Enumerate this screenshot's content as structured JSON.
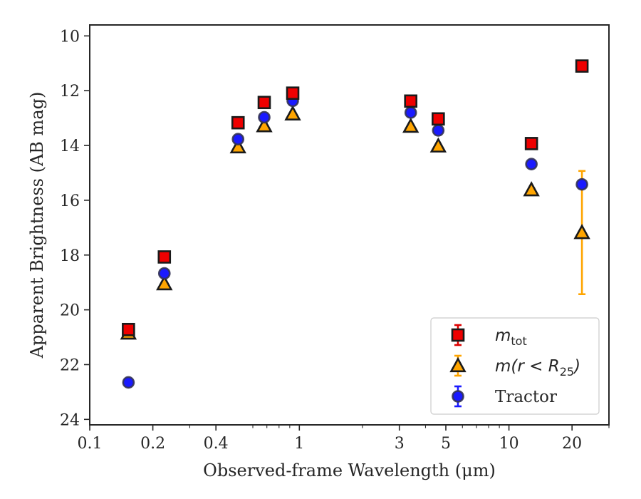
{
  "chart_data": {
    "type": "scatter",
    "title": "",
    "xlabel": "Observed-frame Wavelength (μm)",
    "ylabel": "Apparent Brightness (AB mag)",
    "xscale": "log",
    "xlim": [
      0.1,
      30
    ],
    "ylim": [
      24.2,
      9.6
    ],
    "y_inverted": true,
    "grid": false,
    "legend_position": "lower-right",
    "x_ticks": [
      {
        "value": 0.1,
        "label": "0.1"
      },
      {
        "value": 0.2,
        "label": "0.2"
      },
      {
        "value": 0.4,
        "label": "0.4"
      },
      {
        "value": 1,
        "label": "1"
      },
      {
        "value": 3,
        "label": "3"
      },
      {
        "value": 5,
        "label": "5"
      },
      {
        "value": 10,
        "label": "10"
      },
      {
        "value": 20,
        "label": "20"
      }
    ],
    "y_ticks": [
      {
        "value": 10,
        "label": "10"
      },
      {
        "value": 12,
        "label": "12"
      },
      {
        "value": 14,
        "label": "14"
      },
      {
        "value": 16,
        "label": "16"
      },
      {
        "value": 18,
        "label": "18"
      },
      {
        "value": 20,
        "label": "20"
      },
      {
        "value": 22,
        "label": "22"
      },
      {
        "value": 24,
        "label": "24"
      }
    ],
    "series": [
      {
        "name": "m_tot",
        "legend_main": "m",
        "legend_sub": "tot",
        "marker": "square",
        "color": "#ee0000",
        "error_color": "#dd0000",
        "points": [
          {
            "x": 0.153,
            "y": 20.72,
            "err": 0.15
          },
          {
            "x": 0.227,
            "y": 18.07,
            "err": 0.03
          },
          {
            "x": 0.51,
            "y": 13.17,
            "err": 0.02
          },
          {
            "x": 0.68,
            "y": 12.43,
            "err": 0.02
          },
          {
            "x": 0.93,
            "y": 12.09,
            "err": 0.02
          },
          {
            "x": 3.4,
            "y": 12.38,
            "err": 0.02
          },
          {
            "x": 4.6,
            "y": 13.03,
            "err": 0.02
          },
          {
            "x": 12.8,
            "y": 13.93,
            "err": 0.03
          },
          {
            "x": 22.3,
            "y": 11.1,
            "err": 0.02
          }
        ]
      },
      {
        "name": "m(r < R_25)",
        "legend_main": "m(r < R",
        "legend_sub": "25",
        "legend_close": ")",
        "marker": "triangle",
        "color": "#ffa500",
        "error_color": "#ffa500",
        "points": [
          {
            "x": 0.153,
            "y": 20.85,
            "err": 0.15
          },
          {
            "x": 0.227,
            "y": 19.05,
            "err": 0.05
          },
          {
            "x": 0.51,
            "y": 14.05,
            "err": 0.03
          },
          {
            "x": 0.68,
            "y": 13.28,
            "err": 0.02
          },
          {
            "x": 0.93,
            "y": 12.85,
            "err": 0.02
          },
          {
            "x": 3.4,
            "y": 13.3,
            "err": 0.02
          },
          {
            "x": 4.6,
            "y": 14.02,
            "err": 0.03
          },
          {
            "x": 12.8,
            "y": 15.62,
            "err": 0.06
          },
          {
            "x": 22.3,
            "y": 17.18,
            "err": 2.25
          }
        ]
      },
      {
        "name": "Tractor",
        "legend_main": "Tractor",
        "marker": "circle",
        "color": "#1a1aff",
        "error_color": "#1a1aff",
        "points": [
          {
            "x": 0.153,
            "y": 22.65,
            "err": 0.05
          },
          {
            "x": 0.227,
            "y": 18.67,
            "err": 0.03
          },
          {
            "x": 0.51,
            "y": 13.77,
            "err": 0.02
          },
          {
            "x": 0.68,
            "y": 12.97,
            "err": 0.02
          },
          {
            "x": 0.93,
            "y": 12.37,
            "err": 0.02
          },
          {
            "x": 3.4,
            "y": 12.8,
            "err": 0.02
          },
          {
            "x": 4.6,
            "y": 13.45,
            "err": 0.02
          },
          {
            "x": 12.8,
            "y": 14.68,
            "err": 0.03
          },
          {
            "x": 22.3,
            "y": 15.42,
            "err": 0.05
          }
        ]
      }
    ]
  }
}
